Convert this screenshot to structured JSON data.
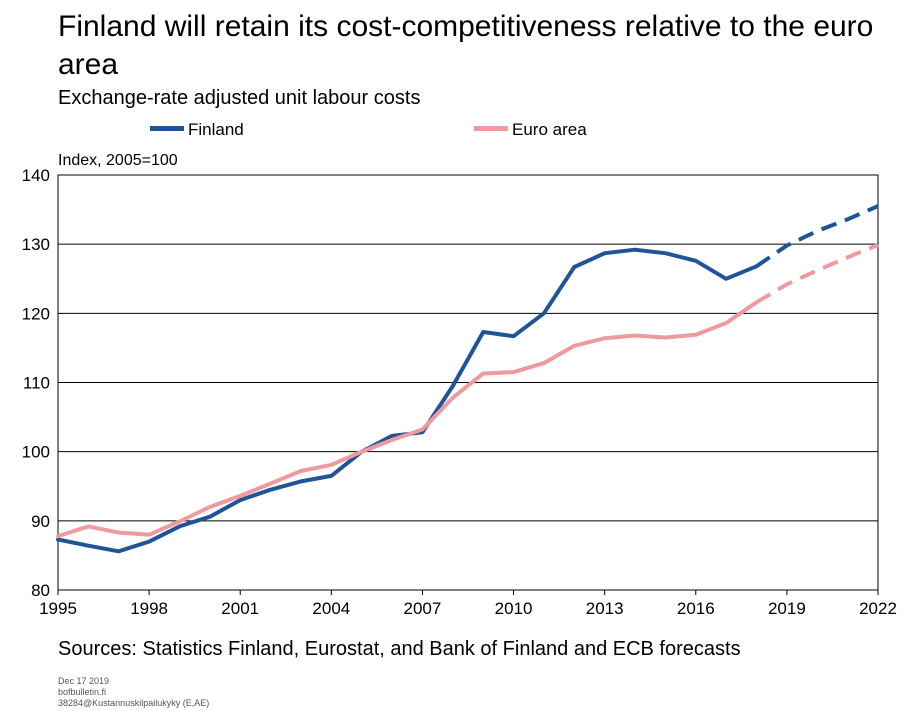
{
  "chart_data": {
    "type": "line",
    "title": "Finland will retain its cost-competitiveness relative to the euro area",
    "subtitle": "Exchange-rate adjusted unit labour costs",
    "ylabel": "Index, 2005=100",
    "ylim": [
      80,
      140
    ],
    "yticks": [
      80,
      90,
      100,
      110,
      120,
      130,
      140
    ],
    "xlim": [
      1995,
      2022
    ],
    "xticks": [
      1995,
      1998,
      2001,
      2004,
      2007,
      2010,
      2013,
      2016,
      2019,
      2022
    ],
    "grid": "horizontal",
    "legend_position": "top",
    "forecast_style": "dashed from 2018",
    "series": [
      {
        "name": "Finland",
        "color": "#1f5597",
        "x": [
          1995,
          1996,
          1997,
          1998,
          1999,
          2000,
          2001,
          2002,
          2003,
          2004,
          2005,
          2006,
          2007,
          2008,
          2009,
          2010,
          2011,
          2012,
          2013,
          2014,
          2015,
          2016,
          2017,
          2018
        ],
        "values": [
          87.3,
          86.4,
          85.6,
          87.0,
          89.2,
          90.6,
          93.0,
          94.5,
          95.7,
          96.5,
          100.0,
          102.3,
          102.8,
          109.5,
          117.3,
          116.7,
          120.0,
          126.7,
          128.7,
          129.2,
          128.7,
          127.6,
          125.0,
          126.8
        ],
        "forecast_x": [
          2018,
          2019,
          2020,
          2021,
          2022
        ],
        "forecast_values": [
          126.8,
          129.8,
          131.9,
          133.6,
          135.5
        ]
      },
      {
        "name": "Euro area",
        "color": "#ee9a9e",
        "x": [
          1995,
          1996,
          1997,
          1998,
          1999,
          2000,
          2001,
          2002,
          2003,
          2004,
          2005,
          2006,
          2007,
          2008,
          2009,
          2010,
          2011,
          2012,
          2013,
          2014,
          2015,
          2016,
          2017,
          2018
        ],
        "values": [
          87.8,
          89.2,
          88.3,
          88.0,
          89.9,
          92.0,
          93.6,
          95.4,
          97.2,
          98.1,
          100.0,
          101.7,
          103.2,
          107.8,
          111.3,
          111.5,
          112.8,
          115.3,
          116.4,
          116.8,
          116.5,
          116.9,
          118.6,
          121.6
        ],
        "forecast_x": [
          2018,
          2019,
          2020,
          2021,
          2022
        ],
        "forecast_values": [
          121.6,
          124.2,
          126.2,
          128.1,
          129.9
        ]
      }
    ]
  },
  "sources": "Sources: Statistics Finland, Eurostat, and Bank of Finland and ECB forecasts",
  "footnotes": [
    "Dec 17 2019",
    "bofbulletin.fi",
    "38284@Kustannuskilpailukyky (E,AE)"
  ]
}
